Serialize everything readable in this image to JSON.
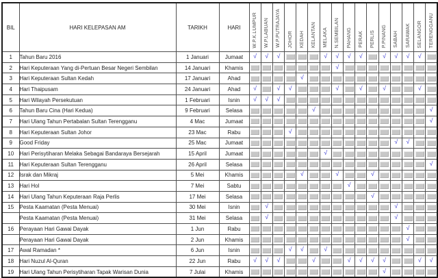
{
  "table": {
    "header": {
      "bil": "BIL",
      "holiday": "HARI KELEPASAN AM",
      "date": "TARIKH",
      "day": "HARI",
      "states": [
        "W.P.K.LUMPUR",
        "W.P.LABUAN",
        "W.P.PUTRAJAYA",
        "JOHOR",
        "KEDAH",
        "KELANTAN",
        "MELAKA",
        "N.SEMBILAN",
        "PAHANG",
        "PERAK",
        "PERLIS",
        "P.PINANG",
        "SABAH",
        "SARAWAK",
        "SELANGOR",
        "TERENGGANU"
      ]
    },
    "check_symbol": "√",
    "colors": {
      "check": "#3b3bd1",
      "empty_cell_fill": "#c8c8c8",
      "grid_line": "#4d4d4d"
    },
    "rows": [
      {
        "bil": "1",
        "name": "Tahun Baru 2016",
        "date": "1 Januari",
        "day": "Jumaat",
        "join": null,
        "states": [
          1,
          1,
          1,
          0,
          0,
          0,
          1,
          1,
          1,
          1,
          0,
          1,
          1,
          1,
          1,
          0
        ]
      },
      {
        "bil": "2",
        "name": "Hari Keputeraan Yang di-Pertuan Besar Negeri Sembilan",
        "date": "14 Januari",
        "day": "Khamis",
        "join": null,
        "states": [
          0,
          0,
          0,
          0,
          0,
          0,
          0,
          1,
          0,
          0,
          0,
          0,
          0,
          0,
          0,
          0
        ]
      },
      {
        "bil": "3",
        "name": "Hari Keputeraan Sultan Kedah",
        "date": "17 Januari",
        "day": "Ahad",
        "join": null,
        "states": [
          0,
          0,
          0,
          0,
          1,
          0,
          0,
          0,
          0,
          0,
          0,
          0,
          0,
          0,
          0,
          0
        ]
      },
      {
        "bil": "4",
        "name": "Hari Thaipusam",
        "date": "24 Januari",
        "day": "Ahad",
        "join": null,
        "states": [
          1,
          0,
          1,
          1,
          0,
          0,
          0,
          1,
          0,
          1,
          0,
          1,
          0,
          0,
          1,
          0
        ]
      },
      {
        "bil": "5",
        "name": "Hari Wilayah Persekutuan",
        "date": "1 Februari",
        "day": "Isnin",
        "join": null,
        "states": [
          1,
          1,
          1,
          0,
          0,
          0,
          0,
          0,
          0,
          0,
          0,
          0,
          0,
          0,
          0,
          0
        ]
      },
      {
        "bil": "6",
        "name": "Tahun Baru Cina (Hari Kedua)",
        "date": "9 Februari",
        "day": "Selasa",
        "join": null,
        "states": [
          0,
          0,
          0,
          0,
          0,
          1,
          0,
          0,
          0,
          0,
          0,
          0,
          0,
          0,
          0,
          1
        ]
      },
      {
        "bil": "7",
        "name": "Hari Ulang Tahun Pertabalan Sultan Terengganu",
        "date": "4 Mac",
        "day": "Jumaat",
        "join": null,
        "states": [
          0,
          0,
          0,
          0,
          0,
          0,
          0,
          0,
          0,
          0,
          0,
          0,
          0,
          0,
          0,
          1
        ]
      },
      {
        "bil": "8",
        "name": "Hari Keputeraan Sultan Johor",
        "date": "23 Mac",
        "day": "Rabu",
        "join": null,
        "states": [
          0,
          0,
          0,
          1,
          0,
          0,
          0,
          0,
          0,
          0,
          0,
          0,
          0,
          0,
          0,
          0
        ]
      },
      {
        "bil": "9",
        "name": "Good Friday",
        "date": "25 Mac",
        "day": "Jumaat",
        "join": null,
        "states": [
          0,
          0,
          0,
          0,
          0,
          0,
          0,
          0,
          0,
          0,
          0,
          0,
          1,
          1,
          0,
          0
        ]
      },
      {
        "bil": "10",
        "name": "Hari Perisytiharan Melaka Sebagai Bandaraya Bersejarah",
        "date": "15 April",
        "day": "Jumaat",
        "join": null,
        "states": [
          0,
          0,
          0,
          0,
          0,
          0,
          1,
          0,
          0,
          0,
          0,
          0,
          0,
          0,
          0,
          0
        ]
      },
      {
        "bil": "11",
        "name": "Hari Keputeraan Sultan Terengganu",
        "date": "26 April",
        "day": "Selasa",
        "join": null,
        "states": [
          0,
          0,
          0,
          0,
          0,
          0,
          0,
          0,
          0,
          0,
          0,
          0,
          0,
          0,
          0,
          1
        ]
      },
      {
        "bil": "12",
        "name": "Israk dan Mikraj",
        "date": "5 Mei",
        "day": "Khamis",
        "join": null,
        "states": [
          0,
          0,
          0,
          0,
          1,
          0,
          0,
          1,
          0,
          0,
          1,
          0,
          0,
          0,
          0,
          0
        ]
      },
      {
        "bil": "13",
        "name": "Hari Hol",
        "date": "7 Mei",
        "day": "Sabtu",
        "join": null,
        "states": [
          0,
          0,
          0,
          0,
          0,
          0,
          0,
          0,
          1,
          0,
          0,
          0,
          0,
          0,
          0,
          0
        ]
      },
      {
        "bil": "14",
        "name": "Hari Ulang Tahun Keputeraan Raja Perlis",
        "date": "17 Mei",
        "day": "Selasa",
        "join": null,
        "states": [
          0,
          0,
          0,
          0,
          0,
          0,
          0,
          0,
          0,
          0,
          1,
          0,
          0,
          0,
          0,
          0
        ]
      },
      {
        "bil": "15",
        "name": "Pesta Kaamatan (Pesta Menuai)",
        "date": "30 Mei",
        "day": "Isnin",
        "join": "start",
        "states": [
          0,
          1,
          0,
          0,
          0,
          0,
          0,
          0,
          0,
          0,
          0,
          0,
          1,
          0,
          0,
          0
        ]
      },
      {
        "bil": "",
        "name": "Pesta Kaamatan (Pesta Menuai)",
        "date": "31 Mei",
        "day": "Selasa",
        "join": "end",
        "states": [
          0,
          1,
          0,
          0,
          0,
          0,
          0,
          0,
          0,
          0,
          0,
          0,
          1,
          0,
          0,
          0
        ]
      },
      {
        "bil": "16",
        "name": "Perayaan Hari Gawai Dayak",
        "date": "1 Jun",
        "day": "Rabu",
        "join": "start",
        "states": [
          0,
          0,
          0,
          0,
          0,
          0,
          0,
          0,
          0,
          0,
          0,
          0,
          0,
          1,
          0,
          0
        ]
      },
      {
        "bil": "",
        "name": "Perayaan Hari Gawai Dayak",
        "date": "2 Jun",
        "day": "Khamis",
        "join": "end",
        "states": [
          0,
          0,
          0,
          0,
          0,
          0,
          0,
          0,
          0,
          0,
          0,
          0,
          0,
          1,
          0,
          0
        ]
      },
      {
        "bil": "17",
        "name": "Awal Ramadan *",
        "date": "6 Jun",
        "day": "Isnin",
        "join": null,
        "states": [
          0,
          0,
          0,
          1,
          1,
          0,
          1,
          0,
          0,
          0,
          0,
          0,
          0,
          0,
          0,
          0
        ]
      },
      {
        "bil": "18",
        "name": "Hari Nuzul Al-Quran",
        "date": "22 Jun",
        "day": "Rabu",
        "join": null,
        "states": [
          1,
          1,
          1,
          0,
          0,
          1,
          0,
          0,
          1,
          1,
          1,
          1,
          0,
          0,
          1,
          1
        ]
      },
      {
        "bil": "19",
        "name": "Hari Ulang Tahun Perisytiharan Tapak Warisan Dunia",
        "date": "7 Julai",
        "day": "Khamis",
        "join": null,
        "states": [
          0,
          0,
          0,
          0,
          0,
          0,
          0,
          0,
          0,
          0,
          0,
          1,
          0,
          0,
          0,
          0
        ]
      }
    ]
  }
}
